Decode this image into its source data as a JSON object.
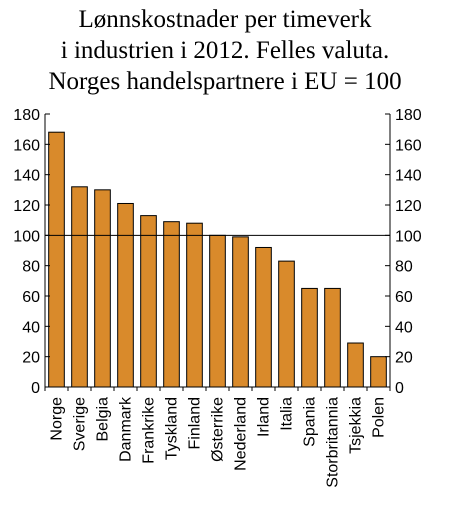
{
  "chart_data": {
    "type": "bar",
    "title_lines": [
      "Lønnskostnader per timeverk",
      "i industrien i 2012. Felles valuta.",
      "Norges handelspartnere i EU = 100"
    ],
    "categories": [
      "Norge",
      "Sverige",
      "Belgia",
      "Danmark",
      "Frankrike",
      "Tyskland",
      "Finland",
      "Østerrike",
      "Nederland",
      "Irland",
      "Italia",
      "Spania",
      "Storbritannia",
      "Tsjekkia",
      "Polen"
    ],
    "values": [
      168,
      132,
      130,
      121,
      113,
      109,
      108,
      100,
      99,
      92,
      83,
      65,
      65,
      29,
      20
    ],
    "ylim": [
      0,
      180
    ],
    "yticks": [
      "0",
      "20",
      "40",
      "60",
      "80",
      "100",
      "120",
      "140",
      "160",
      "180"
    ],
    "reference_line": 100,
    "bar_color": "#d98a2b",
    "bar_edge_color": "#000000"
  }
}
